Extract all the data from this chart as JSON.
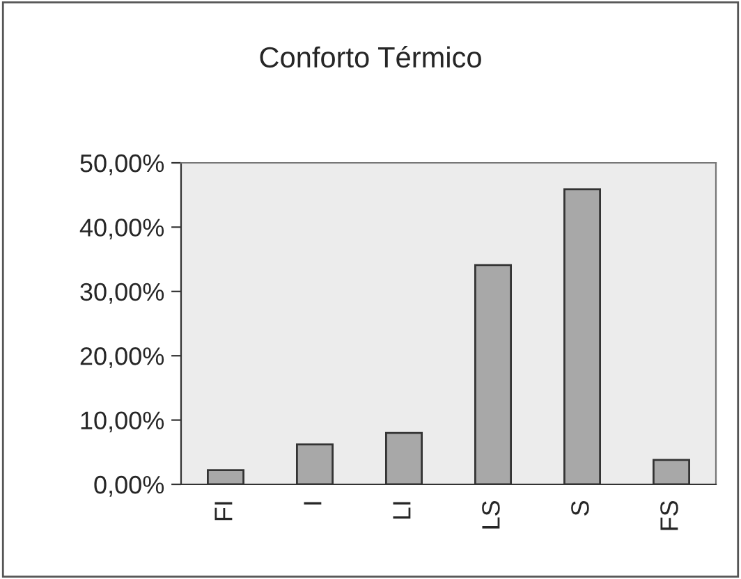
{
  "chart_data": {
    "type": "bar",
    "title": "Conforto Térmico",
    "categories": [
      "FI",
      "I",
      "LI",
      "LS",
      "S",
      "FS"
    ],
    "values": [
      2.2,
      6.2,
      8.0,
      34.1,
      45.9,
      3.8
    ],
    "color": "#a8a8a8",
    "ylim": [
      0,
      50
    ],
    "yticks": [
      {
        "value": 0,
        "label": "0,00%"
      },
      {
        "value": 10,
        "label": "10,00%"
      },
      {
        "value": 20,
        "label": "20,00%"
      },
      {
        "value": 30,
        "label": "30,00%"
      },
      {
        "value": 40,
        "label": "40,00%"
      },
      {
        "value": 50,
        "label": "50,00%"
      }
    ],
    "grid": false,
    "legend": false
  }
}
